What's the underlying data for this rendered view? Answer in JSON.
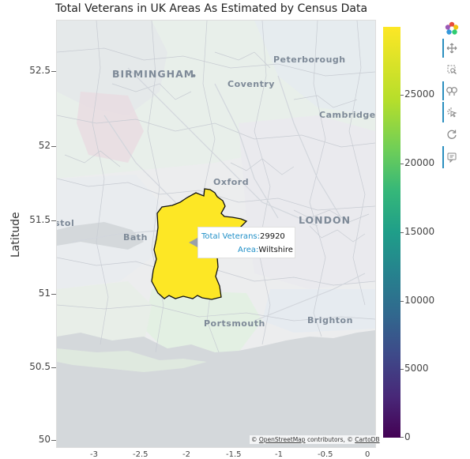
{
  "title": "Total Veterans in UK Areas As Estimated by Census Data",
  "ylabel": "Latitude",
  "y_ticks": [
    "52.5",
    "52",
    "51.5",
    "51",
    "50.5",
    "50"
  ],
  "x_ticks": [
    "-3",
    "-2.5",
    "-2",
    "-1.5",
    "-1",
    "-0.5",
    "0"
  ],
  "cities": {
    "birmingham": "BIRMINGHAM",
    "coventry": "Coventry",
    "peterborough": "Peterborough",
    "cambridge": "Cambridge",
    "oxford": "Oxford",
    "london": "LONDON",
    "bath": "Bath",
    "bristol_partial": "Bristol",
    "portsmouth": "Portsmouth",
    "brighton": "Brighton"
  },
  "tooltip": {
    "key1": "Total Veterans:",
    "val1": "29920",
    "key2": "Area:",
    "val2": "Wiltshire"
  },
  "attribution": {
    "prefix": "©",
    "osm": "OpenStreetMap",
    "middle": "contributors, ©",
    "carto": "CartoDB"
  },
  "colorbar": {
    "labels": [
      "25000",
      "20000",
      "15000",
      "10000",
      "5000",
      "0"
    ],
    "colors": [
      "#440154",
      "#31688e",
      "#1f9e89",
      "#35b779",
      "#fde725"
    ]
  },
  "highlight": {
    "area": "Wiltshire",
    "value": 29920,
    "color": "#fde725"
  },
  "toolbar_icons": [
    "bokeh-logo-icon",
    "pan-icon",
    "box-zoom-icon",
    "wheel-zoom-icon",
    "tap-icon",
    "reset-icon",
    "hover-icon"
  ]
}
